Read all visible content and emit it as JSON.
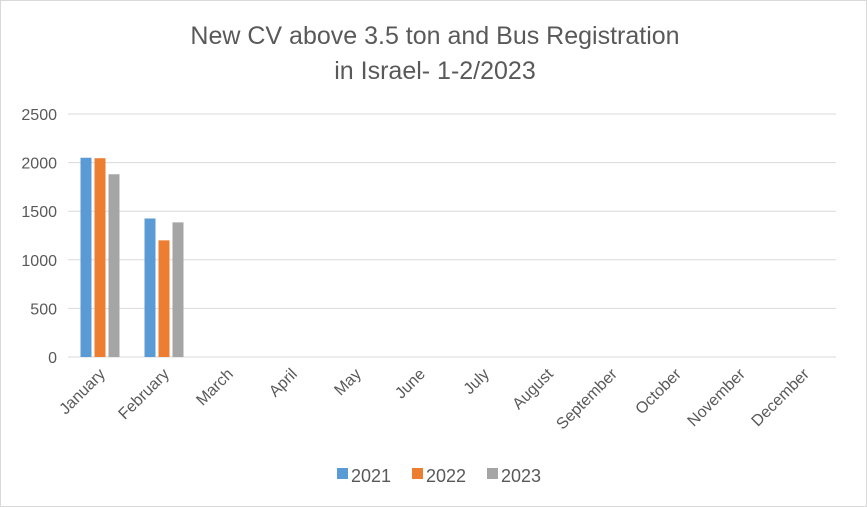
{
  "chart_data": {
    "type": "bar",
    "title_lines": [
      "New CV above 3.5 ton and Bus Registration",
      "in Israel- 1-2/2023"
    ],
    "categories": [
      "January",
      "February",
      "March",
      "April",
      "May",
      "June",
      "July",
      "August",
      "September",
      "October",
      "November",
      "December"
    ],
    "series": [
      {
        "name": "2021",
        "color": "#5b9bd5",
        "values": [
          2050,
          1425,
          null,
          null,
          null,
          null,
          null,
          null,
          null,
          null,
          null,
          null
        ]
      },
      {
        "name": "2022",
        "color": "#ed7d31",
        "values": [
          2045,
          1200,
          null,
          null,
          null,
          null,
          null,
          null,
          null,
          null,
          null,
          null
        ]
      },
      {
        "name": "2023",
        "color": "#a5a5a5",
        "values": [
          1880,
          1385,
          null,
          null,
          null,
          null,
          null,
          null,
          null,
          null,
          null,
          null
        ]
      }
    ],
    "ylim": [
      0,
      2500
    ],
    "yticks": [
      0,
      500,
      1000,
      1500,
      2000,
      2500
    ],
    "grid": true,
    "legend_position": "bottom",
    "gridline_color": "#d9d9d9",
    "axis_color": "#d9d9d9"
  }
}
